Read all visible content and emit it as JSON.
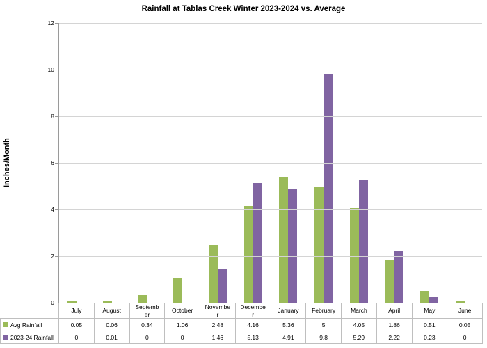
{
  "chart_data": {
    "type": "bar",
    "title": "Rainfall at Tablas Creek Winter 2023-2024 vs. Average",
    "xlabel": "",
    "ylabel": "Inches/Month",
    "ylim": [
      0,
      12
    ],
    "yticks": [
      0,
      2,
      4,
      6,
      8,
      10,
      12
    ],
    "grid": true,
    "legend_position": "data-table-left",
    "categories": [
      "July",
      "August",
      "September",
      "October",
      "November",
      "December",
      "January",
      "February",
      "March",
      "April",
      "May",
      "June"
    ],
    "series": [
      {
        "name": "Avg Rainfall",
        "color": "#9BBB59",
        "values": [
          0.05,
          0.06,
          0.34,
          1.06,
          2.48,
          4.16,
          5.36,
          5,
          4.05,
          1.86,
          0.51,
          0.05
        ]
      },
      {
        "name": "2023-24 Rainfall",
        "color": "#8064A2",
        "values": [
          0,
          0.01,
          0,
          0,
          1.46,
          5.13,
          4.91,
          9.8,
          5.29,
          2.22,
          0.23,
          0
        ]
      }
    ]
  }
}
